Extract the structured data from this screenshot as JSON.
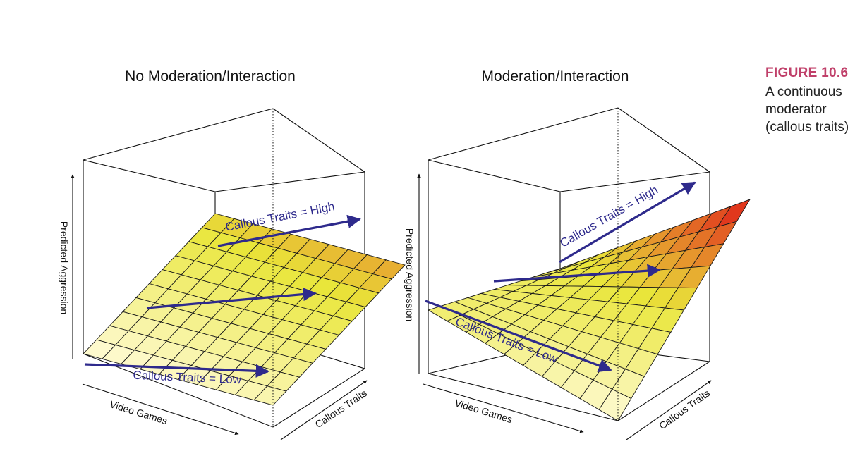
{
  "caption": {
    "label": "FIGURE 10.6",
    "text": "A continuous\nmoderator\n(callous traits)"
  },
  "colors": {
    "arrow": "#2e2a8c",
    "caption_label": "#c0406a",
    "surface_low": "#fffbd8",
    "surface_mid": "#e9e63a",
    "surface_high": "#e01818"
  },
  "chart_data": [
    {
      "type": "surface",
      "title": "No Moderation/Interaction",
      "xlabel": "Video Games",
      "ylabel": "Callous Traits",
      "zlabel": "Predicted Aggression",
      "grid_n": 10,
      "z_corners": {
        "low_low": 0.0,
        "low_high": 0.5,
        "high_low": 0.1,
        "high_high": 0.6
      },
      "annotations": [
        {
          "text": "Callous Traits = High",
          "callous_level": "high"
        },
        {
          "text": "",
          "callous_level": "mid"
        },
        {
          "text": "Callous Traits = Low",
          "callous_level": "low"
        }
      ]
    },
    {
      "type": "surface",
      "title": "Moderation/Interaction",
      "xlabel": "Video Games",
      "ylabel": "Callous Traits",
      "zlabel": "Predicted Aggression",
      "grid_n": 10,
      "z_corners": {
        "low_low": 0.3,
        "low_high": 0.35,
        "high_low": 0.0,
        "high_high": 0.9
      },
      "annotations": [
        {
          "text": "Callous Traits = High",
          "callous_level": "high"
        },
        {
          "text": "",
          "callous_level": "mid"
        },
        {
          "text": "Callous Traits = Low",
          "callous_level": "low"
        }
      ]
    }
  ]
}
